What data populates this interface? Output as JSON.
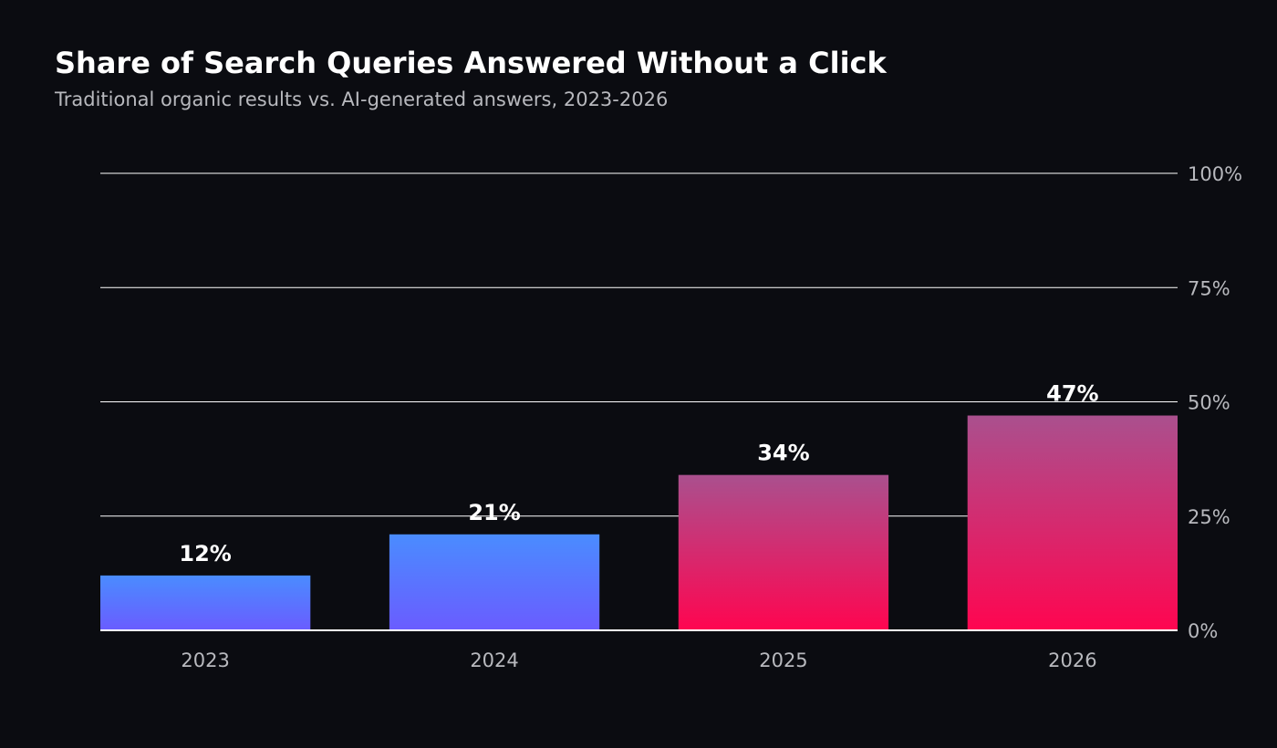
{
  "chart_data": {
    "type": "bar",
    "title": "Share of Search Queries Answered Without a Click",
    "subtitle": "Traditional organic results vs. AI-generated answers, 2023-2026",
    "categories": [
      "2023",
      "2024",
      "2025",
      "2026"
    ],
    "values": [
      12,
      21,
      34,
      47
    ],
    "value_labels": [
      "12%",
      "21%",
      "34%",
      "47%"
    ],
    "ylim": [
      0,
      100
    ],
    "yticks": [
      0,
      25,
      50,
      75,
      100
    ],
    "ytick_labels": [
      "0%",
      "25%",
      "50%",
      "75%",
      "100%"
    ],
    "y_axis_side": "right",
    "grid": true,
    "xlabel": "",
    "ylabel": "",
    "colors": {
      "background": "#0b0c11",
      "grid": "#ffffff",
      "traditional_top": "#4a8cff",
      "traditional_bottom": "#6a5cff",
      "ai_top": "#aa508e",
      "ai_bottom": "#ff0550"
    },
    "bar_fill_groups": [
      "traditional",
      "traditional",
      "ai",
      "ai"
    ]
  }
}
